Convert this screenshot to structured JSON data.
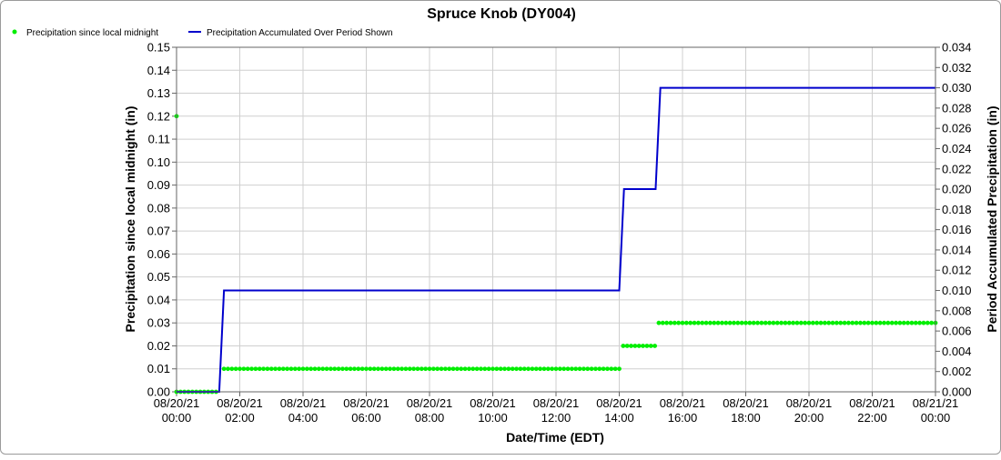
{
  "chart_data": {
    "type": "line",
    "title": "Spruce Knob (DY004)",
    "xlabel": "Date/Time (EDT)",
    "ylabel_left": "Precipitation since local midnight (in)",
    "ylabel_right": "Period Accumulated Precipitation (in)",
    "grid": true,
    "legend_position": "top-left",
    "x_ticks": [
      {
        "hour": 0,
        "date": "08/20/21",
        "time": "00:00"
      },
      {
        "hour": 2,
        "date": "08/20/21",
        "time": "02:00"
      },
      {
        "hour": 4,
        "date": "08/20/21",
        "time": "04:00"
      },
      {
        "hour": 6,
        "date": "08/20/21",
        "time": "06:00"
      },
      {
        "hour": 8,
        "date": "08/20/21",
        "time": "08:00"
      },
      {
        "hour": 10,
        "date": "08/20/21",
        "time": "10:00"
      },
      {
        "hour": 12,
        "date": "08/20/21",
        "time": "12:00"
      },
      {
        "hour": 14,
        "date": "08/20/21",
        "time": "14:00"
      },
      {
        "hour": 16,
        "date": "08/20/21",
        "time": "16:00"
      },
      {
        "hour": 18,
        "date": "08/20/21",
        "time": "18:00"
      },
      {
        "hour": 20,
        "date": "08/20/21",
        "time": "20:00"
      },
      {
        "hour": 22,
        "date": "08/20/21",
        "time": "22:00"
      },
      {
        "hour": 24,
        "date": "08/21/21",
        "time": "00:00"
      }
    ],
    "xlim": [
      0,
      24
    ],
    "ylim_left": [
      0,
      0.15
    ],
    "ylim_right": [
      0,
      0.034
    ],
    "y_ticks_left": [
      "0.00",
      "0.01",
      "0.02",
      "0.03",
      "0.04",
      "0.05",
      "0.06",
      "0.07",
      "0.08",
      "0.09",
      "0.10",
      "0.11",
      "0.12",
      "0.13",
      "0.14",
      "0.15"
    ],
    "y_ticks_right": [
      "0.000",
      "0.002",
      "0.004",
      "0.006",
      "0.008",
      "0.010",
      "0.012",
      "0.014",
      "0.016",
      "0.018",
      "0.020",
      "0.022",
      "0.024",
      "0.026",
      "0.028",
      "0.030",
      "0.032",
      "0.034"
    ],
    "series": [
      {
        "name": "Precipitation since local midnight",
        "axis": "left",
        "style": "dots",
        "color": "#00ee00",
        "points": [
          {
            "x": 0.0,
            "y": 0.12
          },
          {
            "x_start": 0.0,
            "x_end": 1.25,
            "step_hours": 0.125,
            "y": 0.0
          },
          {
            "x_start": 1.5,
            "x_end": 14.0,
            "step_hours": 0.125,
            "y": 0.01
          },
          {
            "x_start": 14.125,
            "x_end": 15.125,
            "step_hours": 0.125,
            "y": 0.02
          },
          {
            "x_start": 15.25,
            "x_end": 24.0,
            "step_hours": 0.125,
            "y": 0.03
          }
        ]
      },
      {
        "name": "Precipitation Accumulated Over Period Shown",
        "axis": "right",
        "style": "line",
        "color": "#0000cc",
        "points": [
          {
            "x": 0.0,
            "y": 0.0
          },
          {
            "x": 1.35,
            "y": 0.0
          },
          {
            "x": 1.5,
            "y": 0.01
          },
          {
            "x": 14.0,
            "y": 0.01
          },
          {
            "x": 14.15,
            "y": 0.02
          },
          {
            "x": 15.15,
            "y": 0.02
          },
          {
            "x": 15.3,
            "y": 0.03
          },
          {
            "x": 24.0,
            "y": 0.03
          }
        ]
      }
    ]
  }
}
